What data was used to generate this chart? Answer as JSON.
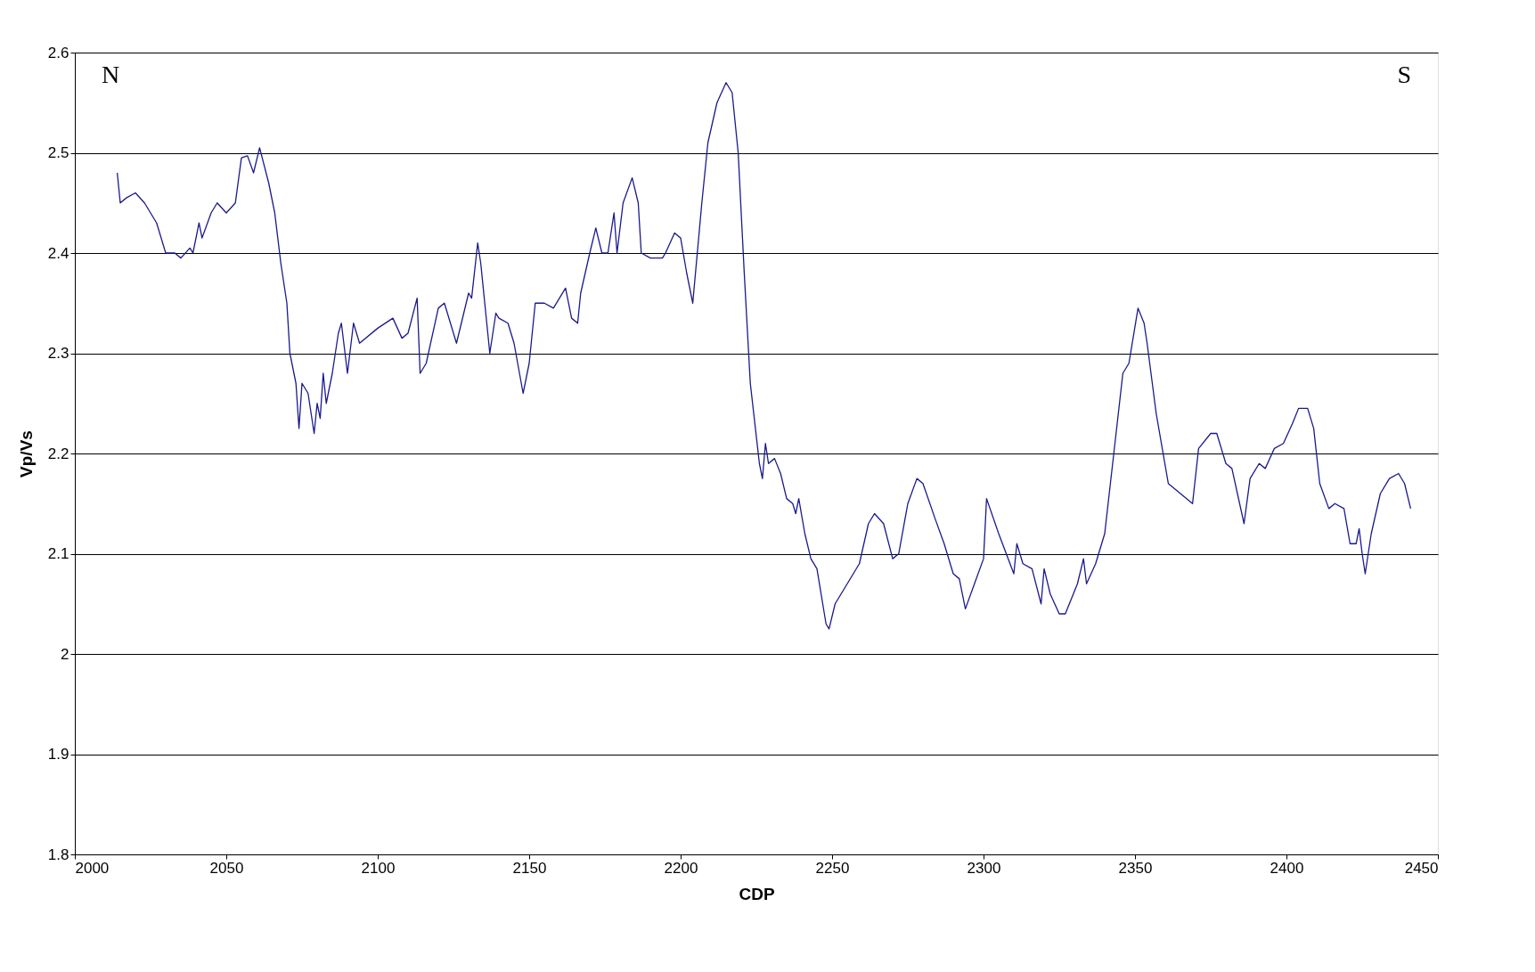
{
  "chart_data": {
    "type": "line",
    "xlabel": "CDP",
    "ylabel": "Vp/Vs",
    "annotations": [
      "N",
      "S"
    ],
    "xlim": [
      2000,
      2450
    ],
    "xticks": [
      2000,
      2050,
      2100,
      2150,
      2200,
      2250,
      2300,
      2350,
      2400,
      2450
    ],
    "ylim": [
      1.8,
      2.6
    ],
    "yticks": [
      1.8,
      1.9,
      2,
      2.1,
      2.2,
      2.3,
      2.4,
      2.5,
      2.6
    ],
    "grid": "y",
    "marker": "none",
    "line_style": "solid",
    "series": [
      {
        "color": "#1a1a8c",
        "x": [
          2014,
          2015,
          2017,
          2020,
          2023,
          2027,
          2030,
          2033,
          2035,
          2038,
          2039,
          2041,
          2042,
          2045,
          2047,
          2050,
          2053,
          2055,
          2057,
          2059,
          2061,
          2064,
          2066,
          2068,
          2070,
          2071,
          2073,
          2074,
          2075,
          2077,
          2079,
          2080,
          2081,
          2082,
          2083,
          2085,
          2087,
          2088,
          2090,
          2092,
          2094,
          2100,
          2105,
          2108,
          2110,
          2113,
          2114,
          2116,
          2120,
          2122,
          2126,
          2130,
          2131,
          2133,
          2134,
          2137,
          2139,
          2140,
          2143,
          2145,
          2148,
          2150,
          2152,
          2155,
          2158,
          2162,
          2164,
          2166,
          2167,
          2170,
          2172,
          2174,
          2176,
          2178,
          2179,
          2181,
          2184,
          2186,
          2187,
          2190,
          2194,
          2195,
          2198,
          2200,
          2202,
          2204,
          2207,
          2209,
          2212,
          2215,
          2217,
          2219,
          2221,
          2223,
          2226,
          2227,
          2228,
          2229,
          2231,
          2233,
          2235,
          2237,
          2238,
          2239,
          2241,
          2243,
          2245,
          2248,
          2249,
          2251,
          2255,
          2259,
          2262,
          2264,
          2267,
          2270,
          2272,
          2275,
          2278,
          2280,
          2284,
          2287,
          2290,
          2292,
          2294,
          2297,
          2300,
          2301,
          2305,
          2310,
          2311,
          2313,
          2316,
          2319,
          2320,
          2322,
          2325,
          2327,
          2331,
          2333,
          2334,
          2337,
          2340,
          2343,
          2346,
          2348,
          2351,
          2353,
          2354,
          2357,
          2361,
          2365,
          2369,
          2371,
          2375,
          2377,
          2380,
          2382,
          2386,
          2388,
          2391,
          2393,
          2396,
          2399,
          2402,
          2404,
          2407,
          2409,
          2411,
          2414,
          2416,
          2419,
          2421,
          2423,
          2424,
          2425,
          2426,
          2428,
          2431,
          2434,
          2437,
          2439,
          2441
        ],
        "values": [
          2.48,
          2.45,
          2.455,
          2.46,
          2.45,
          2.43,
          2.4,
          2.4,
          2.395,
          2.405,
          2.4,
          2.43,
          2.415,
          2.44,
          2.45,
          2.44,
          2.45,
          2.495,
          2.497,
          2.48,
          2.505,
          2.47,
          2.44,
          2.39,
          2.35,
          2.3,
          2.27,
          2.225,
          2.27,
          2.26,
          2.22,
          2.25,
          2.235,
          2.28,
          2.25,
          2.28,
          2.32,
          2.33,
          2.28,
          2.33,
          2.31,
          2.325,
          2.335,
          2.315,
          2.32,
          2.355,
          2.28,
          2.29,
          2.345,
          2.35,
          2.31,
          2.36,
          2.355,
          2.41,
          2.39,
          2.3,
          2.34,
          2.335,
          2.33,
          2.31,
          2.26,
          2.29,
          2.35,
          2.35,
          2.345,
          2.365,
          2.335,
          2.33,
          2.36,
          2.4,
          2.425,
          2.4,
          2.4,
          2.44,
          2.4,
          2.45,
          2.475,
          2.45,
          2.4,
          2.395,
          2.395,
          2.4,
          2.42,
          2.415,
          2.38,
          2.35,
          2.45,
          2.51,
          2.55,
          2.57,
          2.56,
          2.5,
          2.38,
          2.27,
          2.19,
          2.175,
          2.21,
          2.19,
          2.195,
          2.18,
          2.155,
          2.15,
          2.14,
          2.155,
          2.12,
          2.095,
          2.085,
          2.03,
          2.025,
          2.05,
          2.07,
          2.09,
          2.13,
          2.14,
          2.13,
          2.095,
          2.1,
          2.15,
          2.175,
          2.17,
          2.135,
          2.11,
          2.08,
          2.075,
          2.045,
          2.07,
          2.095,
          2.155,
          2.12,
          2.08,
          2.11,
          2.09,
          2.085,
          2.05,
          2.085,
          2.06,
          2.04,
          2.04,
          2.07,
          2.095,
          2.07,
          2.09,
          2.12,
          2.2,
          2.28,
          2.29,
          2.345,
          2.33,
          2.31,
          2.24,
          2.17,
          2.16,
          2.15,
          2.205,
          2.22,
          2.22,
          2.19,
          2.185,
          2.13,
          2.175,
          2.19,
          2.185,
          2.205,
          2.21,
          2.23,
          2.245,
          2.245,
          2.225,
          2.17,
          2.145,
          2.15,
          2.145,
          2.11,
          2.11,
          2.125,
          2.1,
          2.08,
          2.12,
          2.16,
          2.175,
          2.18,
          2.17,
          2.145
        ]
      }
    ]
  }
}
